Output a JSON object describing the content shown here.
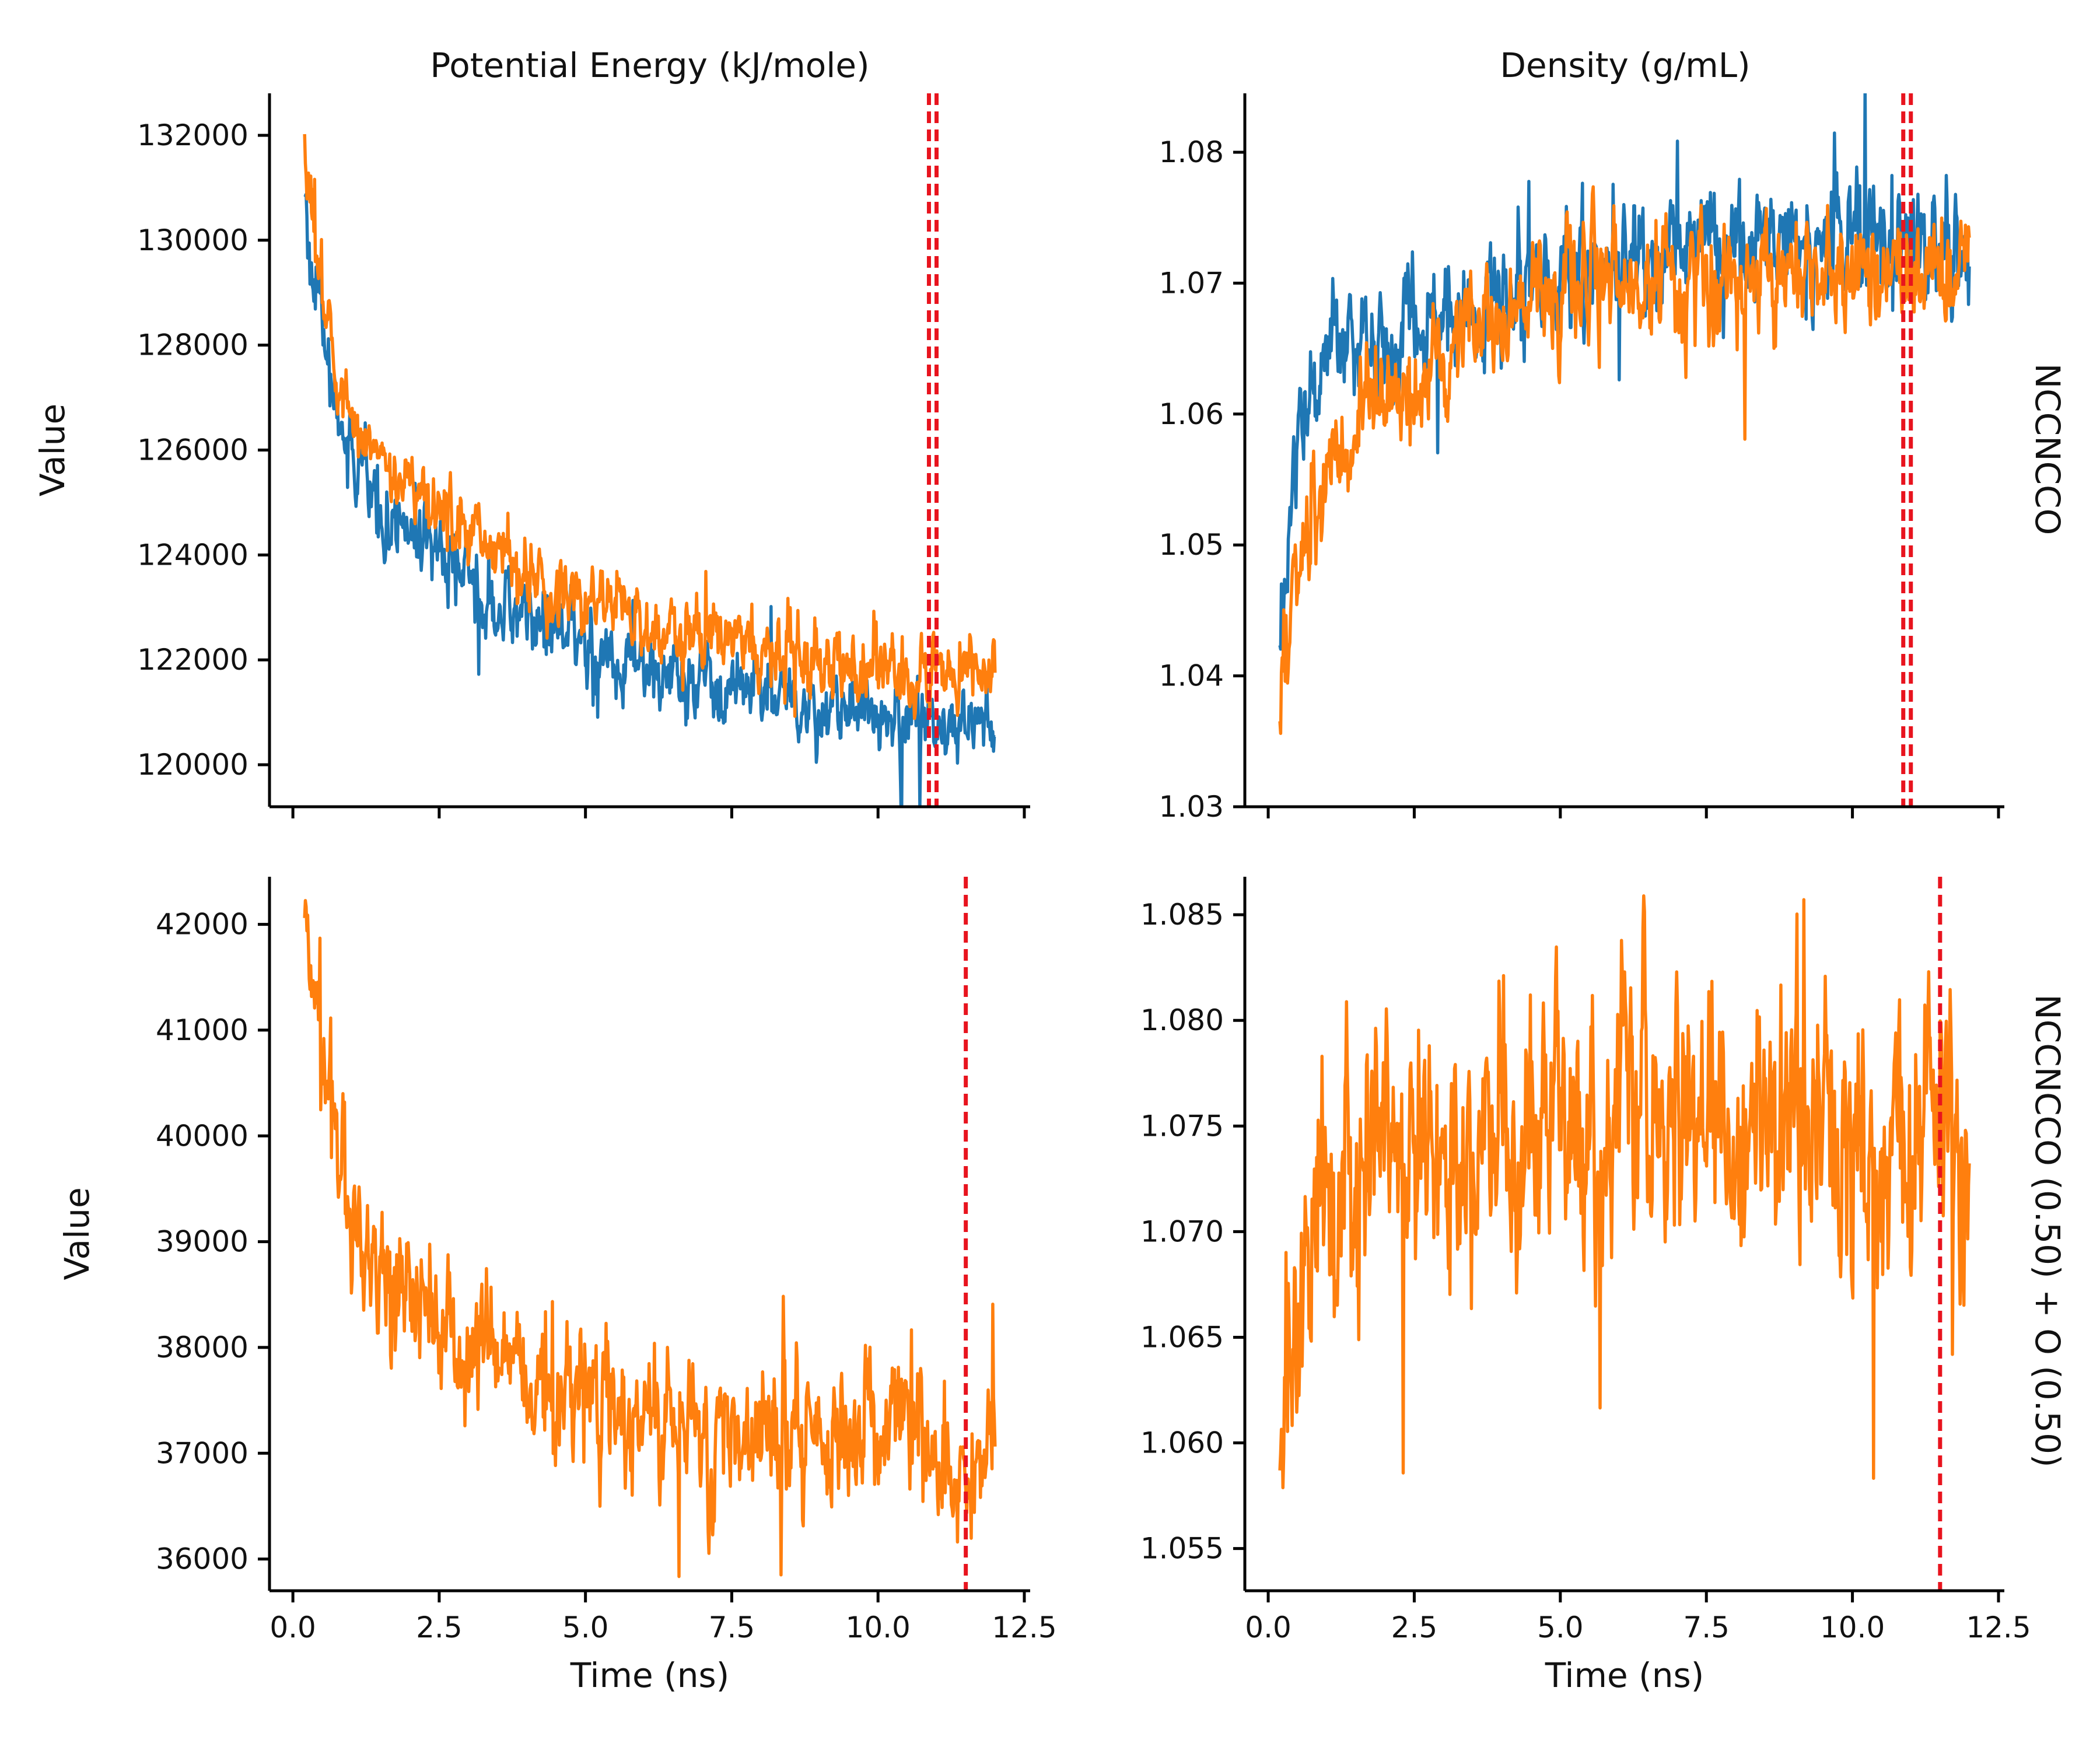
{
  "figure": {
    "column_titles": [
      "Potential Energy (kJ/mole)",
      "Density (g/mL)"
    ],
    "row_titles": [
      "NCCNCCO",
      "NCCNCCO (0.50) + O (0.50)"
    ],
    "ylabel": "Value",
    "xlabel": "Time (ns)",
    "colors": {
      "blue": "#1f77b4",
      "orange": "#ff7f0e",
      "marker": "#e8141e"
    }
  },
  "chart_data": [
    {
      "type": "line",
      "panel": "top-left",
      "title": "Potential Energy (kJ/mole)",
      "xlabel": "",
      "ylabel": "Value",
      "xlim": [
        -0.4,
        12.6
      ],
      "ylim": [
        119200,
        132800
      ],
      "xticks": [
        0,
        2.5,
        5,
        7.5,
        10,
        12.5
      ],
      "xtick_labels_visible": false,
      "yticks": [
        120000,
        122000,
        124000,
        126000,
        128000,
        130000,
        132000
      ],
      "ytick_labels": [
        "120000",
        "122000",
        "124000",
        "126000",
        "128000",
        "130000",
        "132000"
      ],
      "series": [
        {
          "color": "#1f77b4",
          "x": [
            0.2,
            0.3,
            0.4,
            0.5,
            0.6,
            0.8,
            1.0,
            1.25,
            1.5,
            2.0,
            2.5,
            3.0,
            3.5,
            4.0,
            4.5,
            5.0,
            5.5,
            6.0,
            6.5,
            7.0,
            7.5,
            8.0,
            8.5,
            9.0,
            9.5,
            10.0,
            10.5,
            11.0,
            11.5,
            12.0
          ],
          "y": [
            130800,
            129800,
            129000,
            128200,
            127500,
            126600,
            125900,
            125400,
            125000,
            124400,
            123900,
            123500,
            123100,
            122800,
            122500,
            122300,
            122000,
            121800,
            121600,
            121500,
            121400,
            121300,
            121200,
            121100,
            121050,
            121000,
            120950,
            120900,
            120800,
            120700
          ],
          "noise": 380
        },
        {
          "color": "#ff7f0e",
          "x": [
            0.2,
            0.3,
            0.4,
            0.5,
            0.6,
            0.8,
            1.0,
            1.25,
            1.5,
            2.0,
            2.5,
            3.0,
            3.5,
            4.0,
            4.5,
            5.0,
            5.5,
            6.0,
            6.5,
            7.0,
            7.5,
            8.0,
            8.5,
            9.0,
            9.5,
            10.0,
            10.5,
            11.0,
            11.5,
            12.0
          ],
          "y": [
            131800,
            130800,
            130000,
            129200,
            128400,
            127300,
            126600,
            126100,
            125700,
            125300,
            124800,
            124400,
            124000,
            123700,
            123400,
            123100,
            122900,
            122700,
            122600,
            122500,
            122400,
            122200,
            122100,
            122000,
            121900,
            121850,
            121800,
            121750,
            121700,
            121600
          ],
          "noise": 350
        }
      ],
      "vlines": [
        10.87,
        11.0
      ]
    },
    {
      "type": "line",
      "panel": "top-right",
      "title": "Density (g/mL)",
      "xlabel": "",
      "ylabel": "",
      "row_title": "NCCNCCO",
      "xlim": [
        -0.4,
        12.6
      ],
      "ylim": [
        1.03,
        1.0845
      ],
      "xticks": [
        0,
        2.5,
        5,
        7.5,
        10,
        12.5
      ],
      "xtick_labels_visible": false,
      "yticks": [
        1.03,
        1.04,
        1.05,
        1.06,
        1.07,
        1.08
      ],
      "ytick_labels": [
        "1.03",
        "1.04",
        "1.05",
        "1.06",
        "1.07",
        "1.08"
      ],
      "series": [
        {
          "color": "#1f77b4",
          "x": [
            0.2,
            0.3,
            0.4,
            0.5,
            0.6,
            0.8,
            1.0,
            1.25,
            1.5,
            2.0,
            2.5,
            3.0,
            3.5,
            4.0,
            4.5,
            5.0,
            5.5,
            6.0,
            6.5,
            7.0,
            7.5,
            8.0,
            8.5,
            9.0,
            9.5,
            10.0,
            10.5,
            11.0,
            11.5,
            12.0
          ],
          "y": [
            1.041,
            1.048,
            1.054,
            1.058,
            1.06,
            1.063,
            1.065,
            1.066,
            1.066,
            1.066,
            1.066,
            1.067,
            1.068,
            1.069,
            1.07,
            1.07,
            1.071,
            1.071,
            1.072,
            1.072,
            1.073,
            1.073,
            1.074,
            1.074,
            1.074,
            1.074,
            1.074,
            1.074,
            1.074,
            1.073
          ],
          "noise": 0.0022
        },
        {
          "color": "#ff7f0e",
          "x": [
            0.2,
            0.3,
            0.4,
            0.5,
            0.6,
            0.8,
            1.0,
            1.25,
            1.5,
            2.0,
            2.5,
            3.0,
            3.5,
            4.0,
            4.5,
            5.0,
            5.5,
            6.0,
            6.5,
            7.0,
            7.5,
            8.0,
            8.5,
            9.0,
            9.5,
            10.0,
            10.5,
            11.0,
            11.5,
            12.0
          ],
          "y": [
            1.036,
            1.041,
            1.045,
            1.048,
            1.05,
            1.053,
            1.055,
            1.057,
            1.059,
            1.061,
            1.063,
            1.065,
            1.066,
            1.067,
            1.068,
            1.069,
            1.07,
            1.07,
            1.07,
            1.07,
            1.07,
            1.07,
            1.071,
            1.071,
            1.071,
            1.071,
            1.071,
            1.071,
            1.071,
            1.071
          ],
          "noise": 0.0022
        }
      ],
      "vlines": [
        10.87,
        11.0
      ]
    },
    {
      "type": "line",
      "panel": "bottom-left",
      "title": "",
      "xlabel": "Time (ns)",
      "ylabel": "Value",
      "xlim": [
        -0.4,
        12.6
      ],
      "ylim": [
        35700,
        42450
      ],
      "xticks": [
        0,
        2.5,
        5,
        7.5,
        10,
        12.5
      ],
      "xtick_labels": [
        "0.0",
        "2.5",
        "5.0",
        "7.5",
        "10.0",
        "12.5"
      ],
      "xtick_labels_visible": true,
      "yticks": [
        36000,
        37000,
        38000,
        39000,
        40000,
        41000,
        42000
      ],
      "ytick_labels": [
        "36000",
        "37000",
        "38000",
        "39000",
        "40000",
        "41000",
        "42000"
      ],
      "series": [
        {
          "color": "#ff7f0e",
          "x": [
            0.2,
            0.3,
            0.4,
            0.5,
            0.6,
            0.8,
            1.0,
            1.25,
            1.5,
            2.0,
            2.5,
            3.0,
            3.5,
            4.0,
            4.5,
            5.0,
            5.5,
            6.0,
            6.5,
            7.0,
            7.5,
            8.0,
            8.5,
            9.0,
            9.5,
            10.0,
            10.5,
            11.0,
            11.5,
            12.0
          ],
          "y": [
            42000,
            41600,
            41200,
            40800,
            40400,
            39800,
            39300,
            38900,
            38700,
            38500,
            38300,
            38100,
            37900,
            37800,
            37700,
            37600,
            37500,
            37400,
            37300,
            37250,
            37200,
            37200,
            37150,
            37150,
            37200,
            37250,
            37250,
            37000,
            36700,
            36900
          ],
          "noise": 330
        }
      ],
      "vlines": [
        11.5
      ]
    },
    {
      "type": "line",
      "panel": "bottom-right",
      "title": "",
      "xlabel": "Time (ns)",
      "ylabel": "",
      "row_title": "NCCNCCO (0.50) + O (0.50)",
      "xlim": [
        -0.4,
        12.6
      ],
      "ylim": [
        1.053,
        1.0868
      ],
      "xticks": [
        0,
        2.5,
        5,
        7.5,
        10,
        12.5
      ],
      "xtick_labels": [
        "0.0",
        "2.5",
        "5.0",
        "7.5",
        "10.0",
        "12.5"
      ],
      "xtick_labels_visible": true,
      "yticks": [
        1.055,
        1.06,
        1.065,
        1.07,
        1.075,
        1.08,
        1.085
      ],
      "ytick_labels": [
        "1.055",
        "1.060",
        "1.065",
        "1.070",
        "1.075",
        "1.080",
        "1.085"
      ],
      "series": [
        {
          "color": "#ff7f0e",
          "x": [
            0.2,
            0.3,
            0.4,
            0.5,
            0.6,
            0.8,
            1.0,
            1.25,
            1.5,
            2.0,
            2.5,
            3.0,
            3.5,
            4.0,
            4.5,
            5.0,
            5.5,
            6.0,
            6.5,
            7.0,
            7.5,
            8.0,
            8.5,
            9.0,
            9.5,
            10.0,
            10.5,
            11.0,
            11.5,
            12.0
          ],
          "y": [
            1.06,
            1.063,
            1.065,
            1.066,
            1.068,
            1.07,
            1.071,
            1.072,
            1.073,
            1.074,
            1.074,
            1.074,
            1.075,
            1.075,
            1.075,
            1.075,
            1.075,
            1.075,
            1.075,
            1.075,
            1.075,
            1.075,
            1.075,
            1.075,
            1.075,
            1.074,
            1.074,
            1.074,
            1.076,
            1.073
          ],
          "noise": 0.0033
        }
      ],
      "vlines": [
        11.5
      ]
    }
  ]
}
